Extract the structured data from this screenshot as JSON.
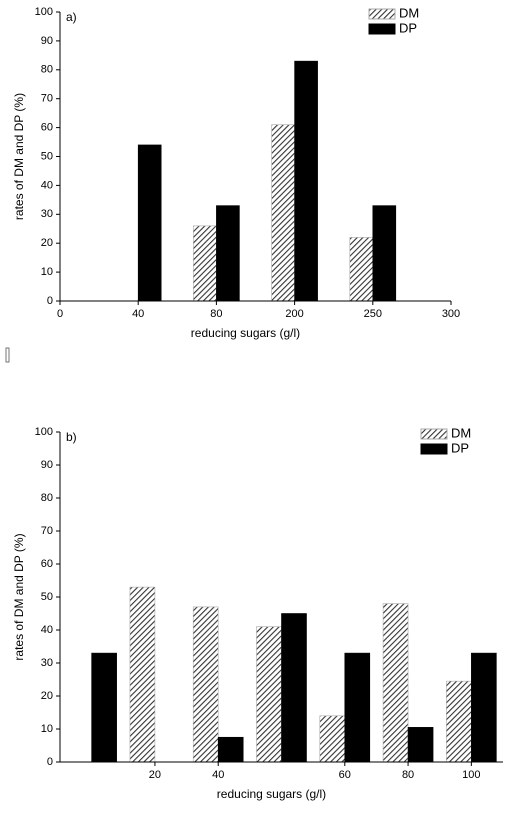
{
  "chart_data": [
    {
      "type": "bar",
      "annotation": "a)",
      "x_label": "reducing sugars (g/l)",
      "y_label": "rates of DM and DP (%)",
      "categories": [
        "0",
        "40",
        "80",
        "200",
        "250",
        "300"
      ],
      "series": [
        {
          "name": "DM",
          "color": "#555555",
          "pattern": "hatch",
          "values": [
            null,
            null,
            26,
            61,
            22,
            null
          ]
        },
        {
          "name": "DP",
          "color": "#000000",
          "pattern": "solid",
          "values": [
            null,
            54,
            33,
            83,
            33,
            null
          ]
        }
      ],
      "ylim": [
        0,
        100
      ],
      "yticks": [
        0,
        10,
        20,
        30,
        40,
        50,
        60,
        70,
        80,
        90,
        100
      ],
      "legend": "upper right"
    },
    {
      "type": "bar",
      "annotation": "b)",
      "x_label": "reducing sugars (g/l)",
      "y_label": "rates of DM and DP (%)",
      "categories": [
        null,
        "20",
        "40",
        null,
        "60",
        "80",
        "100"
      ],
      "series": [
        {
          "name": "DM",
          "color": "#555555",
          "pattern": "hatch",
          "values": [
            null,
            53,
            47,
            41,
            14,
            48,
            24.5
          ]
        },
        {
          "name": "DP",
          "color": "#000000",
          "pattern": "solid",
          "values": [
            33,
            null,
            7.5,
            45,
            33,
            10.5,
            33
          ]
        }
      ],
      "ylim": [
        0,
        100
      ],
      "yticks": [
        0,
        10,
        20,
        30,
        40,
        50,
        60,
        70,
        80,
        90,
        100
      ],
      "legend": "upper right"
    }
  ]
}
